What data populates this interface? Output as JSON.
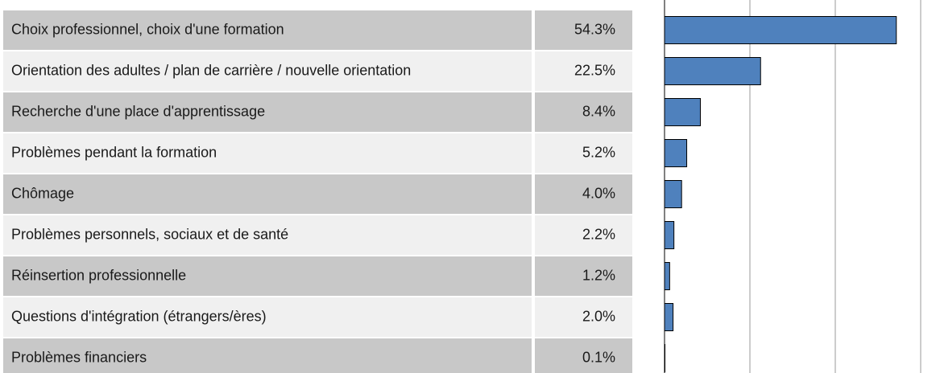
{
  "chart_data": {
    "type": "bar",
    "orientation": "horizontal",
    "categories": [
      "Choix professionnel, choix d'une formation",
      "Orientation des adultes / plan de carrière / nouvelle orientation",
      "Recherche d'une place d'apprentissage",
      "Problèmes pendant la formation",
      "Chômage",
      "Problèmes personnels, sociaux et de santé",
      "Réinsertion professionnelle",
      "Questions d'intégration (étrangers/ères)",
      "Problèmes financiers"
    ],
    "values": [
      54.3,
      22.5,
      8.4,
      5.2,
      4.0,
      2.2,
      1.2,
      2.0,
      0.1
    ],
    "value_labels": [
      "54.3%",
      "22.5%",
      "8.4%",
      "5.2%",
      "4.0%",
      "2.2%",
      "1.2%",
      "2.0%",
      "0.1%"
    ],
    "color": "#4f81bd",
    "xlim": [
      0,
      60
    ],
    "xticks": [
      0,
      20,
      40,
      60
    ],
    "grid": true
  }
}
